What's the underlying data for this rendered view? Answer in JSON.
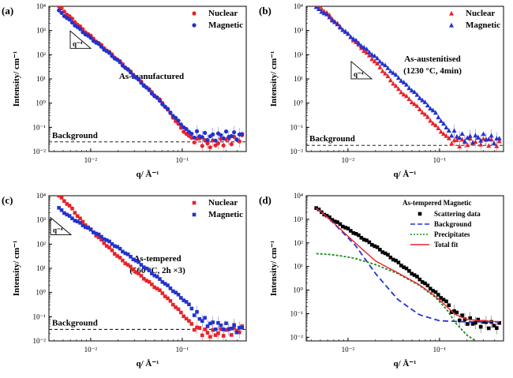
{
  "chart_data": [
    {
      "type": "scatter",
      "panel_label": "(a)",
      "xlabel": "q/ Å⁻¹",
      "ylabel": "Intensity/ cm⁻¹",
      "xscale": "log",
      "yscale": "log",
      "xlim": [
        0.0035,
        0.5
      ],
      "ylim": [
        0.01,
        10000
      ],
      "x_ticks": [
        {
          "value": 0.01,
          "label": "10⁻²"
        },
        {
          "value": 0.1,
          "label": "10⁻¹"
        }
      ],
      "y_ticks": [
        {
          "value": 10000,
          "label": "10⁴"
        },
        {
          "value": 1000,
          "label": "10³"
        },
        {
          "value": 100,
          "label": "10²"
        },
        {
          "value": 10,
          "label": "10¹"
        },
        {
          "value": 1,
          "label": "10⁰"
        },
        {
          "value": 0.1,
          "label": "10⁻¹"
        },
        {
          "value": 0.01,
          "label": "10⁻²"
        }
      ],
      "annotation": "As-manufactured",
      "background_label": "Background",
      "background_level": 0.025,
      "slope_label": "q⁻⁴",
      "legend_position": "top-right",
      "series": [
        {
          "name": "Nuclear",
          "marker": "circle",
          "color": "#e8232a",
          "x": [
            0.0045,
            0.006,
            0.008,
            0.012,
            0.02,
            0.035,
            0.06,
            0.1,
            0.12,
            0.15,
            0.2,
            0.3,
            0.45
          ],
          "y": [
            10000,
            3500,
            1200,
            320,
            60,
            8,
            1.1,
            0.08,
            0.04,
            0.03,
            0.02,
            0.028,
            0.035
          ]
        },
        {
          "name": "Magnetic",
          "marker": "circle",
          "color": "#2233cc",
          "x": [
            0.0045,
            0.006,
            0.008,
            0.012,
            0.02,
            0.035,
            0.06,
            0.1,
            0.12,
            0.15,
            0.2,
            0.3,
            0.45
          ],
          "y": [
            6500,
            2500,
            950,
            280,
            55,
            7.5,
            1.0,
            0.12,
            0.06,
            0.05,
            0.04,
            0.05,
            0.045
          ]
        }
      ]
    },
    {
      "type": "scatter",
      "panel_label": "(b)",
      "xlabel": "q/ Å⁻¹",
      "ylabel": "Intensity/ cm⁻¹",
      "xscale": "log",
      "yscale": "log",
      "xlim": [
        0.0035,
        0.5
      ],
      "ylim": [
        0.01,
        10000
      ],
      "x_ticks": [
        {
          "value": 0.01,
          "label": "10⁻²"
        },
        {
          "value": 0.1,
          "label": "10⁻¹"
        }
      ],
      "y_ticks": [
        {
          "value": 10000,
          "label": "10⁴"
        },
        {
          "value": 1000,
          "label": "10³"
        },
        {
          "value": 100,
          "label": "10²"
        },
        {
          "value": 10,
          "label": "10¹"
        },
        {
          "value": 1,
          "label": "10⁰"
        },
        {
          "value": 0.1,
          "label": "10⁻¹"
        },
        {
          "value": 0.01,
          "label": "10⁻²"
        }
      ],
      "annotation": [
        "As-austenitised",
        "(1230 °C, 4min)"
      ],
      "background_label": "Background",
      "background_level": 0.018,
      "slope_label": "q⁻⁴",
      "legend_position": "top-right",
      "series": [
        {
          "name": "Nuclear",
          "marker": "triangle",
          "color": "#e8232a",
          "x": [
            0.0045,
            0.006,
            0.008,
            0.012,
            0.02,
            0.035,
            0.06,
            0.09,
            0.12,
            0.15,
            0.2,
            0.3,
            0.45
          ],
          "y": [
            12000,
            5000,
            1600,
            350,
            50,
            4,
            0.6,
            0.12,
            0.04,
            0.025,
            0.025,
            0.03,
            0.02
          ]
        },
        {
          "name": "Magnetic",
          "marker": "triangle",
          "color": "#2233cc",
          "x": [
            0.0045,
            0.006,
            0.008,
            0.012,
            0.02,
            0.035,
            0.06,
            0.09,
            0.12,
            0.15,
            0.2,
            0.3,
            0.45
          ],
          "y": [
            9000,
            4200,
            1500,
            400,
            80,
            12,
            1.8,
            0.4,
            0.09,
            0.05,
            0.035,
            0.04,
            0.03
          ]
        }
      ]
    },
    {
      "type": "scatter",
      "panel_label": "(c)",
      "xlabel": "q/ Å⁻¹",
      "ylabel": "Intensity/ cm⁻¹",
      "xscale": "log",
      "yscale": "log",
      "xlim": [
        0.0035,
        0.5
      ],
      "ylim": [
        0.01,
        10000
      ],
      "x_ticks": [
        {
          "value": 0.01,
          "label": "10⁻²"
        },
        {
          "value": 0.1,
          "label": "10⁻¹"
        }
      ],
      "y_ticks": [
        {
          "value": 10000,
          "label": "10⁴"
        },
        {
          "value": 1000,
          "label": "10³"
        },
        {
          "value": 100,
          "label": "10²"
        },
        {
          "value": 10,
          "label": "10¹"
        },
        {
          "value": 1,
          "label": "10⁰"
        },
        {
          "value": 0.1,
          "label": "10⁻¹"
        },
        {
          "value": 0.01,
          "label": "10⁻²"
        }
      ],
      "annotation": [
        "As-tempered",
        "(560 °C, 2h ×3)"
      ],
      "background_label": "Background",
      "background_level": 0.03,
      "slope_label": "q⁻⁴",
      "legend_position": "top-right",
      "series": [
        {
          "name": "Nuclear",
          "marker": "square",
          "color": "#e8232a",
          "x": [
            0.0045,
            0.006,
            0.008,
            0.012,
            0.02,
            0.035,
            0.06,
            0.09,
            0.12,
            0.15,
            0.2,
            0.3,
            0.45
          ],
          "y": [
            10000,
            3500,
            900,
            200,
            30,
            5,
            1.0,
            0.2,
            0.06,
            0.03,
            0.02,
            0.025,
            0.03
          ]
        },
        {
          "name": "Magnetic",
          "marker": "square",
          "color": "#2233cc",
          "x": [
            0.0045,
            0.006,
            0.008,
            0.012,
            0.02,
            0.035,
            0.06,
            0.09,
            0.12,
            0.15,
            0.2,
            0.3,
            0.45
          ],
          "y": [
            3000,
            1300,
            650,
            250,
            70,
            15,
            3,
            0.8,
            0.3,
            0.1,
            0.05,
            0.04,
            0.03
          ]
        }
      ]
    },
    {
      "type": "scatter",
      "panel_label": "(d)",
      "xlabel": "q/ Å⁻¹",
      "ylabel": "Intensity/ cm⁻¹",
      "xscale": "log",
      "yscale": "log",
      "xlim": [
        0.0035,
        0.5
      ],
      "ylim": [
        0.007,
        10000
      ],
      "x_ticks": [
        {
          "value": 0.01,
          "label": "10⁻²"
        },
        {
          "value": 0.1,
          "label": "10⁻¹"
        }
      ],
      "y_ticks": [
        {
          "value": 10000,
          "label": "10⁴"
        },
        {
          "value": 1000,
          "label": "10³"
        },
        {
          "value": 100,
          "label": "10²"
        },
        {
          "value": 10,
          "label": "10¹"
        },
        {
          "value": 1,
          "label": "10⁰"
        },
        {
          "value": 0.1,
          "label": "10⁻¹"
        },
        {
          "value": 0.01,
          "label": "10⁻²"
        }
      ],
      "legend_title": "As-tempered Magnetic",
      "legend_position": "top-right",
      "series": [
        {
          "name": "Scattering data",
          "marker": "square",
          "color": "#000000",
          "x": [
            0.0045,
            0.006,
            0.008,
            0.012,
            0.02,
            0.035,
            0.06,
            0.09,
            0.12,
            0.15,
            0.2,
            0.3,
            0.45
          ],
          "y": [
            3000,
            1300,
            650,
            250,
            70,
            15,
            3,
            0.8,
            0.3,
            0.1,
            0.05,
            0.04,
            0.03
          ]
        },
        {
          "name": "Background",
          "line": "dashed",
          "color": "#2233cc",
          "x": [
            0.0045,
            0.006,
            0.008,
            0.012,
            0.02,
            0.035,
            0.06,
            0.1,
            0.2,
            0.3,
            0.45
          ],
          "y": [
            3000,
            1200,
            400,
            80,
            5,
            0.4,
            0.09,
            0.05,
            0.045,
            0.045,
            0.045
          ]
        },
        {
          "name": "Precipitates",
          "line": "dotted",
          "color": "#1a8a1a",
          "x": [
            0.0045,
            0.006,
            0.008,
            0.012,
            0.02,
            0.035,
            0.06,
            0.09,
            0.12,
            0.15,
            0.2,
            0.25
          ],
          "y": [
            35,
            33,
            29,
            22,
            12,
            5,
            1.6,
            0.5,
            0.15,
            0.04,
            0.012,
            0.007
          ]
        },
        {
          "name": "Total fit",
          "line": "solid",
          "color": "#e8232a",
          "x": [
            0.0045,
            0.006,
            0.008,
            0.012,
            0.02,
            0.035,
            0.06,
            0.09,
            0.12,
            0.15,
            0.2,
            0.3,
            0.45
          ],
          "y": [
            3000,
            1230,
            430,
            100,
            17,
            5.4,
            1.7,
            0.55,
            0.2,
            0.09,
            0.057,
            0.05,
            0.045
          ]
        }
      ]
    }
  ]
}
